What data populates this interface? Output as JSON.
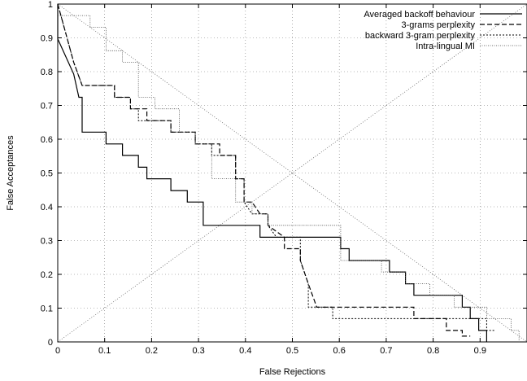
{
  "chart_data": {
    "type": "line",
    "title": "",
    "xlabel": "False Rejections",
    "ylabel": "False Acceptances",
    "xlim": [
      0,
      1
    ],
    "ylim": [
      0,
      1
    ],
    "grid": true,
    "legend_position": "top-right",
    "x_ticks": [
      "0",
      "0.1",
      "0.2",
      "0.3",
      "0.4",
      "0.5",
      "0.6",
      "0.7",
      "0.8",
      "0.9"
    ],
    "x_tick_values": [
      0,
      0.1,
      0.2,
      0.3,
      0.4,
      0.5,
      0.6,
      0.7,
      0.8,
      0.9
    ],
    "y_ticks": [
      "0",
      "0.1",
      "0.2",
      "0.3",
      "0.4",
      "0.5",
      "0.6",
      "0.7",
      "0.8",
      "0.9",
      "1"
    ],
    "y_tick_values": [
      0,
      0.1,
      0.2,
      0.3,
      0.4,
      0.5,
      0.6,
      0.7,
      0.8,
      0.9,
      1
    ],
    "series": [
      {
        "name": "Averaged backoff behaviour",
        "dash": "solid",
        "points": [
          [
            0,
            1
          ],
          [
            0,
            0.897
          ],
          [
            0.034,
            0.793
          ],
          [
            0.045,
            0.724
          ],
          [
            0.052,
            0.724
          ],
          [
            0.052,
            0.621
          ],
          [
            0.103,
            0.621
          ],
          [
            0.103,
            0.586
          ],
          [
            0.138,
            0.586
          ],
          [
            0.138,
            0.552
          ],
          [
            0.172,
            0.552
          ],
          [
            0.172,
            0.517
          ],
          [
            0.19,
            0.517
          ],
          [
            0.19,
            0.483
          ],
          [
            0.241,
            0.483
          ],
          [
            0.241,
            0.448
          ],
          [
            0.276,
            0.448
          ],
          [
            0.276,
            0.414
          ],
          [
            0.31,
            0.414
          ],
          [
            0.31,
            0.345
          ],
          [
            0.431,
            0.345
          ],
          [
            0.431,
            0.31
          ],
          [
            0.603,
            0.31
          ],
          [
            0.603,
            0.276
          ],
          [
            0.621,
            0.276
          ],
          [
            0.621,
            0.241
          ],
          [
            0.707,
            0.241
          ],
          [
            0.707,
            0.207
          ],
          [
            0.741,
            0.207
          ],
          [
            0.741,
            0.172
          ],
          [
            0.759,
            0.172
          ],
          [
            0.759,
            0.138
          ],
          [
            0.862,
            0.138
          ],
          [
            0.862,
            0.103
          ],
          [
            0.879,
            0.103
          ],
          [
            0.879,
            0.069
          ],
          [
            0.897,
            0.069
          ],
          [
            0.897,
            0.034
          ],
          [
            0.914,
            0.034
          ],
          [
            0.914,
            0
          ]
        ]
      },
      {
        "name": "3-grams perplexity",
        "dash": "dashed",
        "points": [
          [
            0,
            1
          ],
          [
            0.034,
            0.828
          ],
          [
            0.052,
            0.759
          ],
          [
            0.121,
            0.759
          ],
          [
            0.121,
            0.724
          ],
          [
            0.155,
            0.724
          ],
          [
            0.155,
            0.69
          ],
          [
            0.19,
            0.69
          ],
          [
            0.19,
            0.655
          ],
          [
            0.241,
            0.655
          ],
          [
            0.241,
            0.621
          ],
          [
            0.293,
            0.621
          ],
          [
            0.293,
            0.586
          ],
          [
            0.345,
            0.586
          ],
          [
            0.345,
            0.552
          ],
          [
            0.379,
            0.552
          ],
          [
            0.379,
            0.517
          ],
          [
            0.379,
            0.483
          ],
          [
            0.397,
            0.483
          ],
          [
            0.397,
            0.414
          ],
          [
            0.414,
            0.414
          ],
          [
            0.431,
            0.379
          ],
          [
            0.448,
            0.379
          ],
          [
            0.448,
            0.345
          ],
          [
            0.483,
            0.31
          ],
          [
            0.483,
            0.276
          ],
          [
            0.517,
            0.276
          ],
          [
            0.517,
            0.241
          ],
          [
            0.534,
            0.172
          ],
          [
            0.552,
            0.103
          ],
          [
            0.759,
            0.103
          ],
          [
            0.759,
            0.069
          ],
          [
            0.828,
            0.069
          ],
          [
            0.828,
            0.034
          ],
          [
            0.862,
            0.034
          ],
          [
            0.862,
            0.017
          ],
          [
            0.879,
            0.017
          ]
        ]
      },
      {
        "name": "backward 3-gram perplexity",
        "dash": "dotted",
        "points": [
          [
            0,
            1
          ],
          [
            0.034,
            0.828
          ],
          [
            0.052,
            0.759
          ],
          [
            0.121,
            0.759
          ],
          [
            0.121,
            0.724
          ],
          [
            0.155,
            0.724
          ],
          [
            0.155,
            0.69
          ],
          [
            0.172,
            0.69
          ],
          [
            0.172,
            0.655
          ],
          [
            0.241,
            0.655
          ],
          [
            0.241,
            0.621
          ],
          [
            0.293,
            0.621
          ],
          [
            0.293,
            0.586
          ],
          [
            0.328,
            0.586
          ],
          [
            0.328,
            0.552
          ],
          [
            0.379,
            0.552
          ],
          [
            0.379,
            0.483
          ],
          [
            0.397,
            0.483
          ],
          [
            0.397,
            0.414
          ],
          [
            0.414,
            0.379
          ],
          [
            0.448,
            0.379
          ],
          [
            0.448,
            0.345
          ],
          [
            0.466,
            0.31
          ],
          [
            0.517,
            0.31
          ],
          [
            0.517,
            0.241
          ],
          [
            0.534,
            0.172
          ],
          [
            0.534,
            0.103
          ],
          [
            0.586,
            0.103
          ],
          [
            0.586,
            0.069
          ],
          [
            0.914,
            0.069
          ],
          [
            0.914,
            0.034
          ],
          [
            0.931,
            0.034
          ]
        ]
      },
      {
        "name": "Intra-lingual MI",
        "dash": "dotted",
        "points": [
          [
            0,
            0.966
          ],
          [
            0.069,
            0.966
          ],
          [
            0.069,
            0.931
          ],
          [
            0.103,
            0.931
          ],
          [
            0.103,
            0.862
          ],
          [
            0.138,
            0.862
          ],
          [
            0.138,
            0.828
          ],
          [
            0.172,
            0.828
          ],
          [
            0.172,
            0.724
          ],
          [
            0.207,
            0.724
          ],
          [
            0.207,
            0.69
          ],
          [
            0.259,
            0.69
          ],
          [
            0.259,
            0.621
          ],
          [
            0.293,
            0.621
          ],
          [
            0.293,
            0.586
          ],
          [
            0.328,
            0.586
          ],
          [
            0.328,
            0.483
          ],
          [
            0.379,
            0.483
          ],
          [
            0.379,
            0.414
          ],
          [
            0.414,
            0.414
          ],
          [
            0.414,
            0.379
          ],
          [
            0.448,
            0.379
          ],
          [
            0.448,
            0.345
          ],
          [
            0.603,
            0.345
          ],
          [
            0.603,
            0.241
          ],
          [
            0.69,
            0.241
          ],
          [
            0.69,
            0.207
          ],
          [
            0.741,
            0.207
          ],
          [
            0.741,
            0.172
          ],
          [
            0.793,
            0.172
          ],
          [
            0.793,
            0.138
          ],
          [
            0.845,
            0.138
          ],
          [
            0.845,
            0.103
          ],
          [
            0.914,
            0.103
          ],
          [
            0.914,
            0.069
          ],
          [
            0.966,
            0.069
          ],
          [
            0.966,
            0.034
          ],
          [
            0.983,
            0.034
          ],
          [
            0.983,
            0
          ]
        ]
      }
    ]
  }
}
